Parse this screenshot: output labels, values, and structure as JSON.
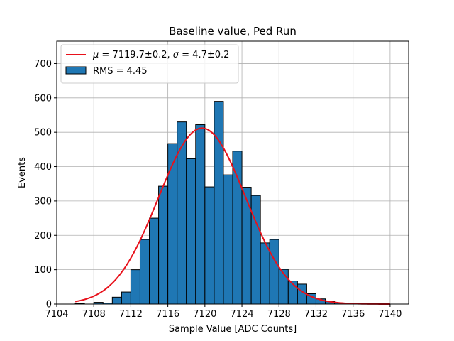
{
  "chart_data": {
    "type": "bar",
    "title": "Baseline value, Ped Run",
    "xlabel": "Sample Value [ADC Counts]",
    "ylabel": "Events",
    "xlim": [
      7104,
      7142
    ],
    "ylim": [
      0,
      765
    ],
    "xticks": [
      7104,
      7108,
      7112,
      7116,
      7120,
      7124,
      7128,
      7132,
      7136,
      7140
    ],
    "yticks": [
      0,
      100,
      200,
      300,
      400,
      500,
      600,
      700
    ],
    "grid": true,
    "legend_position": "top-left",
    "bar_color": "#1f77b4",
    "fit_color": "#e8111b",
    "bins": {
      "x_start": [
        7106,
        7107,
        7108,
        7109,
        7110,
        7111,
        7112,
        7113,
        7114,
        7115,
        7116,
        7117,
        7118,
        7119,
        7120,
        7121,
        7122,
        7123,
        7124,
        7125,
        7126,
        7127,
        7128,
        7129,
        7130,
        7131,
        7132,
        7133,
        7134,
        7135
      ],
      "counts": [
        2,
        0,
        5,
        3,
        20,
        35,
        100,
        188,
        250,
        343,
        467,
        530,
        423,
        522,
        341,
        590,
        376,
        445,
        340,
        316,
        178,
        188,
        101,
        67,
        58,
        30,
        15,
        8,
        3,
        1
      ],
      "width": 1
    },
    "fit": {
      "mu": 7119.7,
      "sigma": 4.7,
      "amplitude": 512,
      "x_range": [
        7106,
        7140
      ]
    },
    "legend": [
      {
        "label_mu_sym": "μ",
        "label_eq1": " = 7119.7±0.2, ",
        "label_sigma_sym": "σ",
        "label_eq2": " = 4.7±0.2",
        "kind": "line"
      },
      {
        "label": "RMS = 4.45",
        "kind": "patch"
      }
    ]
  }
}
